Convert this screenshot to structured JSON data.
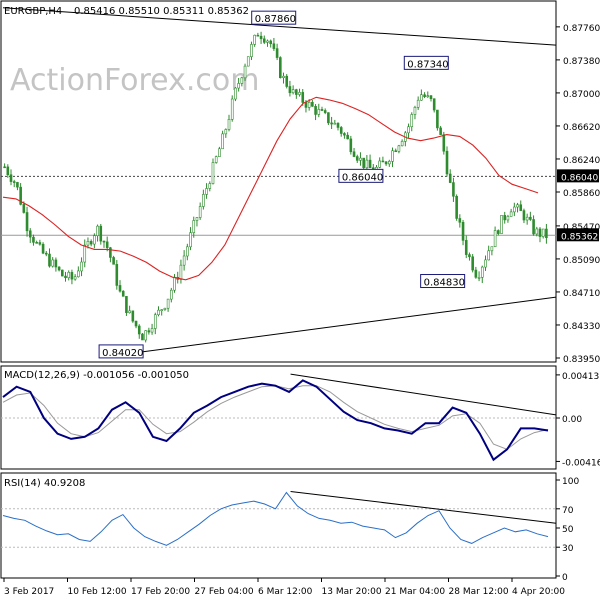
{
  "chart_data": [
    {
      "panel": "price",
      "type": "candlestick",
      "title": "EURGBP,H4",
      "ohlc_text": "0.85416 0.85510 0.85311 0.85362",
      "ylim": [
        0.8395,
        0.88
      ],
      "y_ticks": [
        "0.87760",
        "0.87380",
        "0.87000",
        "0.86620",
        "0.86240",
        "0.85860",
        "0.85470",
        "0.85090",
        "0.84710",
        "0.84330",
        "0.83950"
      ],
      "price_tags": [
        {
          "label": "0.86040",
          "value": 0.8604,
          "color": "#000000"
        },
        {
          "label": "0.85362",
          "value": 0.85362,
          "color": "#000000"
        }
      ],
      "horizontal_lines": [
        0.8604,
        0.85362
      ],
      "annotations": [
        {
          "text": "0.87860",
          "value": 0.8786
        },
        {
          "text": "0.87340",
          "value": 0.8734
        },
        {
          "text": "0.86040",
          "value": 0.8604
        },
        {
          "text": "0.84830",
          "value": 0.8483
        },
        {
          "text": "0.84020",
          "value": 0.8402
        }
      ],
      "trend_lines": [
        {
          "name": "upper",
          "from": [
            0,
            0.8798
          ],
          "to": [
            1,
            0.8755
          ]
        },
        {
          "name": "lower",
          "from": [
            0.18,
            0.8396
          ],
          "to": [
            1,
            0.8465
          ]
        }
      ],
      "close_path": [
        0.8615,
        0.8595,
        0.8545,
        0.852,
        0.8505,
        0.849,
        0.8485,
        0.852,
        0.8545,
        0.852,
        0.847,
        0.844,
        0.842,
        0.844,
        0.846,
        0.849,
        0.853,
        0.857,
        0.861,
        0.865,
        0.87,
        0.874,
        0.877,
        0.876,
        0.872,
        0.87,
        0.869,
        0.868,
        0.867,
        0.866,
        0.864,
        0.862,
        0.861,
        0.862,
        0.864,
        0.866,
        0.87,
        0.869,
        0.864,
        0.857,
        0.852,
        0.849,
        0.852,
        0.855,
        0.857,
        0.856,
        0.854,
        0.8536
      ],
      "ma_path": [
        0.858,
        0.8578,
        0.857,
        0.856,
        0.8548,
        0.8535,
        0.8525,
        0.852,
        0.852,
        0.8518,
        0.8512,
        0.8505,
        0.8495,
        0.8488,
        0.8485,
        0.849,
        0.8505,
        0.8525,
        0.8555,
        0.8585,
        0.8615,
        0.8645,
        0.867,
        0.8688,
        0.8695,
        0.8692,
        0.8688,
        0.8682,
        0.8675,
        0.8665,
        0.8655,
        0.8648,
        0.8645,
        0.8648,
        0.8652,
        0.865,
        0.864,
        0.8625,
        0.8605,
        0.8595,
        0.859,
        0.8585
      ],
      "colors": {
        "candle": "#2e8b2e",
        "ma": "#dd2222",
        "trend": "#000000"
      }
    },
    {
      "panel": "macd",
      "type": "line",
      "label": "MACD(12,26,9) -0.001056 -0.001050",
      "ylim": [
        -0.0046,
        0.0046
      ],
      "y_ticks": [
        "0.004131",
        "0.00",
        "-0.004162"
      ],
      "price_tag": "0.00",
      "macd": [
        0.002,
        0.003,
        0.0025,
        0.0,
        -0.0015,
        -0.002,
        -0.0018,
        -0.001,
        0.0008,
        0.0015,
        0.0005,
        -0.0018,
        -0.0022,
        -0.001,
        0.0005,
        0.0012,
        0.002,
        0.0025,
        0.003,
        0.0033,
        0.0031,
        0.0025,
        0.0036,
        0.003,
        0.0018,
        0.0006,
        -0.0002,
        -0.0005,
        -0.001,
        -0.0012,
        -0.0015,
        -0.0005,
        -0.0005,
        0.001,
        0.0005,
        -0.0015,
        -0.004,
        -0.003,
        -0.001,
        -0.001,
        -0.0012
      ],
      "signal": [
        0.0015,
        0.0022,
        0.0024,
        0.0012,
        -0.0005,
        -0.0015,
        -0.0018,
        -0.0014,
        -0.0003,
        0.0008,
        0.0008,
        -0.0006,
        -0.0015,
        -0.0013,
        -0.0004,
        0.0006,
        0.0014,
        0.002,
        0.0025,
        0.003,
        0.0031,
        0.0028,
        0.0031,
        0.0031,
        0.0025,
        0.0015,
        0.0006,
        0.0,
        -0.0006,
        -0.001,
        -0.0013,
        -0.001,
        -0.0007,
        0.0002,
        0.0004,
        -0.0005,
        -0.0025,
        -0.003,
        -0.002,
        -0.0014,
        -0.0011
      ],
      "trend_line": {
        "from": [
          0.52,
          0.0042
        ],
        "to": [
          1,
          0.0003
        ]
      },
      "colors": {
        "macd": "#000080",
        "signal": "#999999"
      }
    },
    {
      "panel": "rsi",
      "type": "line",
      "label": "RSI(14) 40.9208",
      "ylim": [
        0,
        100
      ],
      "y_ticks": [
        "100",
        "70",
        "50",
        "30",
        "0"
      ],
      "levels": [
        70,
        30
      ],
      "values": [
        63,
        60,
        58,
        52,
        47,
        43,
        44,
        38,
        36,
        46,
        58,
        64,
        50,
        41,
        36,
        32,
        38,
        46,
        54,
        63,
        70,
        74,
        76,
        78,
        75,
        70,
        87,
        73,
        65,
        60,
        58,
        55,
        56,
        52,
        50,
        48,
        40,
        45,
        55,
        63,
        68,
        50,
        38,
        34,
        40,
        45,
        50,
        46,
        48,
        44,
        41
      ],
      "trend_line": {
        "from": [
          0.52,
          88
        ],
        "to": [
          1,
          55
        ]
      },
      "color": "#2a6fc9"
    }
  ],
  "x_axis": {
    "ticks": [
      "3 Feb 2017",
      "10 Feb 12:00",
      "17 Feb 20:00",
      "27 Feb 04:00",
      "6 Mar 12:00",
      "13 Mar 20:00",
      "21 Mar 04:00",
      "28 Mar 12:00",
      "4 Apr 20:00"
    ]
  },
  "watermark": "ActionForex.com"
}
